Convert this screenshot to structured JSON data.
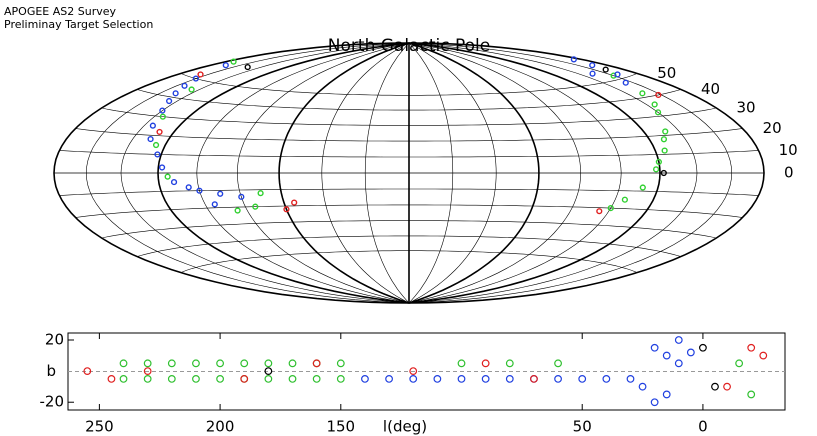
{
  "chart_data": [
    {
      "type": "skymap",
      "header": [
        "APOGEE AS2 Survey",
        "Preliminay Target Selection"
      ],
      "title": "North Galactic Pole",
      "yticks": [
        0,
        10,
        20,
        30,
        40,
        50
      ],
      "series": [
        {
          "name": "blue",
          "color": "#2040e0",
          "x": [
            -170,
            -160,
            -150,
            -140,
            -135,
            -130,
            -122,
            -118,
            -112,
            -100,
            -90,
            -80,
            -95,
            -105,
            -145,
            -155
          ],
          "y": [
            58,
            50,
            42,
            33,
            25,
            18,
            10,
            3,
            -5,
            -10,
            -12,
            -14,
            -18,
            -8,
            38,
            46
          ]
        },
        {
          "name": "green",
          "color": "#30d030",
          "x": [
            -175,
            -145,
            -135,
            -125,
            -75,
            -70,
            -85,
            -115,
            160,
            150,
            140,
            132,
            125,
            118,
            112,
            105,
            100,
            145,
            128,
            120
          ],
          "y": [
            60,
            45,
            30,
            15,
            -20,
            -12,
            -22,
            -2,
            52,
            42,
            32,
            22,
            12,
            2,
            -8,
            -15,
            -20,
            36,
            18,
            6
          ]
        },
        {
          "name": "red",
          "color": "#e02020",
          "x": [
            -165,
            -128,
            -60,
            -55,
            158,
            95
          ],
          "y": [
            52,
            22,
            -22,
            -18,
            40,
            -22
          ]
        },
        {
          "name": "black",
          "color": "#000000",
          "x": [
            -150,
            168,
            122
          ],
          "y": [
            60,
            55,
            0
          ]
        },
        {
          "name": "blue2",
          "color": "#2040e0",
          "x": [
            170,
            165,
            155,
            150,
            175
          ],
          "y": [
            58,
            52,
            48,
            55,
            62
          ]
        }
      ]
    },
    {
      "type": "scatter",
      "xlabel": "l(deg)",
      "ylabel": "b",
      "xlim": [
        263,
        -34
      ],
      "ylim": [
        -25,
        24.5
      ],
      "xticks": [
        250,
        200,
        150,
        50,
        0
      ],
      "yticks": [
        -20,
        20
      ],
      "series": [
        {
          "name": "green",
          "color": "#30c030",
          "x": [
            240,
            230,
            220,
            210,
            200,
            190,
            180,
            170,
            160,
            150,
            240,
            230,
            220,
            210,
            200,
            190,
            180,
            170,
            160,
            150,
            100,
            80,
            60,
            -15,
            -20
          ],
          "y": [
            5,
            5,
            5,
            5,
            5,
            5,
            5,
            5,
            5,
            5,
            -5,
            -5,
            -5,
            -5,
            -5,
            -5,
            -5,
            -5,
            -5,
            -5,
            5,
            5,
            5,
            5,
            -15
          ]
        },
        {
          "name": "blue",
          "color": "#2040e0",
          "x": [
            140,
            130,
            120,
            110,
            100,
            90,
            80,
            70,
            60,
            50,
            40,
            20,
            15,
            10,
            25,
            15,
            20,
            10,
            5,
            30
          ],
          "y": [
            -5,
            -5,
            -5,
            -5,
            -5,
            -5,
            -5,
            -5,
            -5,
            -5,
            -5,
            15,
            10,
            5,
            -10,
            -15,
            -20,
            20,
            12,
            -5
          ]
        },
        {
          "name": "red",
          "color": "#e02020",
          "x": [
            230,
            190,
            160,
            120,
            90,
            70,
            -10,
            -20,
            -25,
            255,
            245
          ],
          "y": [
            0,
            -5,
            5,
            0,
            5,
            -5,
            -10,
            15,
            10,
            0,
            -5
          ]
        },
        {
          "name": "black",
          "color": "#000000",
          "x": [
            180,
            0,
            -5
          ],
          "y": [
            0,
            15,
            -10
          ]
        }
      ]
    }
  ]
}
